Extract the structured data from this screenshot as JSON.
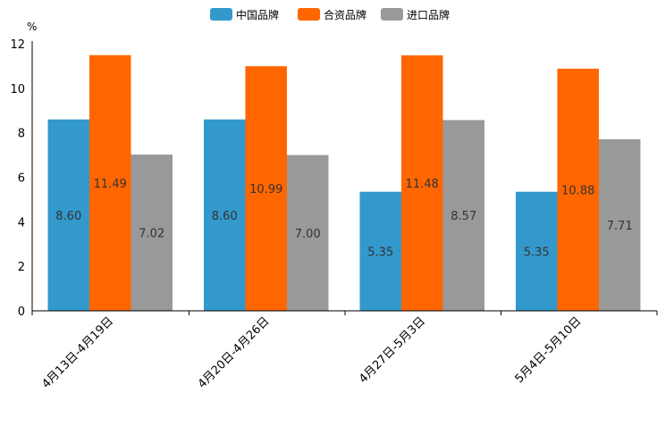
{
  "chart_data": {
    "type": "bar",
    "ylabel": "%",
    "ylim": [
      0,
      12
    ],
    "yticks": [
      0,
      2,
      4,
      6,
      8,
      10,
      12
    ],
    "categories": [
      "4月13日-4月19日",
      "4月20日-4月26日",
      "4月27日-5月3日",
      "5月4日-5月10日"
    ],
    "series": [
      {
        "name": "中国品牌",
        "color": "#3399cc",
        "values": [
          8.6,
          8.6,
          5.35,
          5.35
        ],
        "labels": [
          "8.60",
          "8.60",
          "5.35",
          "5.35"
        ]
      },
      {
        "name": "合资品牌",
        "color": "#ff6600",
        "values": [
          11.49,
          10.99,
          11.48,
          10.88
        ],
        "labels": [
          "11.49",
          "10.99",
          "11.48",
          "10.88"
        ]
      },
      {
        "name": "进口品牌",
        "color": "#999999",
        "values": [
          7.02,
          7.0,
          8.57,
          7.71
        ],
        "labels": [
          "7.02",
          "7.00",
          "8.57",
          "7.71"
        ]
      }
    ],
    "legend_position": "top-center",
    "grid": false
  }
}
